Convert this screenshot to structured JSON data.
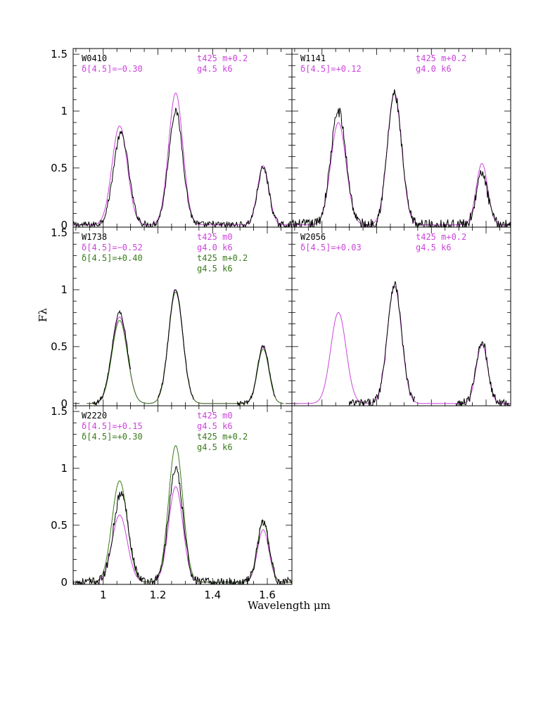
{
  "chart_data": {
    "type": "line",
    "xlabel": "Wavelength μm",
    "ylabel": "Fλ",
    "xlim": [
      0.89,
      1.69
    ],
    "ylim": [
      -0.02,
      1.55
    ],
    "x_ticks": [
      1,
      1.2,
      1.4,
      1.6
    ],
    "x_tick_labels": [
      "1",
      "1.2",
      "1.4",
      "1.6"
    ],
    "y_ticks": [
      0,
      0.5,
      1,
      1.5
    ],
    "y_tick_labels": [
      "0",
      "0.5",
      "1",
      "1.5"
    ],
    "colors": {
      "observed": "#000000",
      "model_a": "#cc44dd",
      "model_b": "#3a7a1a"
    },
    "panels": [
      {
        "id": "W0410",
        "label": "W0410",
        "annotations": [
          {
            "text": "δ[4.5]=−0.30",
            "color": "#cc44dd",
            "col": "left",
            "row": 1
          },
          {
            "text": "t425  m+0.2",
            "color": "#cc44dd",
            "col": "right",
            "row": 0
          },
          {
            "text": "g4.5  k6",
            "color": "#cc44dd",
            "col": "right",
            "row": 1
          }
        ],
        "observed": {
          "segments": [
            [
              0.89,
              1.69
            ]
          ],
          "peaks": [
            [
              1.065,
              0.8
            ],
            [
              1.265,
              1.0
            ],
            [
              1.585,
              0.5
            ]
          ],
          "noise": 0.03
        },
        "models": [
          {
            "color": "#cc44dd",
            "segments": [
              [
                0.89,
                1.69
              ]
            ],
            "peaks": [
              [
                1.06,
                0.87
              ],
              [
                1.265,
                1.16
              ],
              [
                1.585,
                0.52
              ]
            ]
          }
        ]
      },
      {
        "id": "W1141",
        "label": "W1141",
        "annotations": [
          {
            "text": "δ[4.5]=+0.12",
            "color": "#cc44dd",
            "col": "left",
            "row": 1
          },
          {
            "text": "t425  m+0.2",
            "color": "#cc44dd",
            "col": "right",
            "row": 0
          },
          {
            "text": "g4.0  k6",
            "color": "#cc44dd",
            "col": "right",
            "row": 1
          }
        ],
        "observed": {
          "segments": [
            [
              0.89,
              1.69
            ]
          ],
          "peaks": [
            [
              1.06,
              1.0
            ],
            [
              1.265,
              1.15
            ],
            [
              1.585,
              0.45
            ]
          ],
          "noise": 0.05
        },
        "models": [
          {
            "color": "#cc44dd",
            "segments": [
              [
                0.89,
                1.69
              ]
            ],
            "peaks": [
              [
                1.06,
                0.9
              ],
              [
                1.265,
                1.16
              ],
              [
                1.585,
                0.54
              ]
            ]
          }
        ]
      },
      {
        "id": "W1738",
        "label": "W1738",
        "annotations": [
          {
            "text": "δ[4.5]=−0.52",
            "color": "#cc44dd",
            "col": "left",
            "row": 1
          },
          {
            "text": "δ[4.5]=+0.40",
            "color": "#3a7a1a",
            "col": "left",
            "row": 2
          },
          {
            "text": "t425  m0",
            "color": "#cc44dd",
            "col": "right",
            "row": 0
          },
          {
            "text": "g4.0  k6",
            "color": "#cc44dd",
            "col": "right",
            "row": 1
          },
          {
            "text": "t425  m+0.2",
            "color": "#3a7a1a",
            "col": "right",
            "row": 2
          },
          {
            "text": "g4.5  k6",
            "color": "#3a7a1a",
            "col": "right",
            "row": 3
          }
        ],
        "observed": {
          "segments": [
            [
              0.96,
              1.1
            ],
            [
              1.2,
              1.33
            ],
            [
              1.49,
              1.63
            ]
          ],
          "peaks": [
            [
              1.06,
              0.8
            ],
            [
              1.265,
              1.0
            ],
            [
              1.585,
              0.5
            ]
          ],
          "noise": 0.02
        },
        "models": [
          {
            "color": "#cc44dd",
            "segments": [
              [
                0.94,
                1.66
              ]
            ],
            "peaks": [
              [
                1.06,
                0.76
              ],
              [
                1.265,
                1.0
              ],
              [
                1.585,
                0.5
              ]
            ]
          },
          {
            "color": "#3a7a1a",
            "segments": [
              [
                0.94,
                1.66
              ]
            ],
            "peaks": [
              [
                1.06,
                0.73
              ],
              [
                1.265,
                0.98
              ],
              [
                1.585,
                0.48
              ]
            ]
          }
        ]
      },
      {
        "id": "W2056",
        "label": "W2056",
        "annotations": [
          {
            "text": "δ[4.5]=+0.03",
            "color": "#cc44dd",
            "col": "left",
            "row": 1
          },
          {
            "text": "t425  m+0.2",
            "color": "#cc44dd",
            "col": "right",
            "row": 0
          },
          {
            "text": "g4.5  k6",
            "color": "#cc44dd",
            "col": "right",
            "row": 1
          }
        ],
        "observed": {
          "segments": [
            [
              1.1,
              1.34
            ],
            [
              1.49,
              1.69
            ]
          ],
          "peaks": [
            [
              1.265,
              1.05
            ],
            [
              1.585,
              0.55
            ]
          ],
          "noise": 0.04
        },
        "models": [
          {
            "color": "#cc44dd",
            "segments": [
              [
                0.9,
                1.69
              ]
            ],
            "peaks": [
              [
                1.06,
                0.8
              ],
              [
                1.265,
                1.03
              ],
              [
                1.585,
                0.52
              ]
            ]
          }
        ]
      },
      {
        "id": "W2220",
        "label": "W2220",
        "annotations": [
          {
            "text": "δ[4.5]=+0.15",
            "color": "#cc44dd",
            "col": "left",
            "row": 1
          },
          {
            "text": "δ[4.5]=+0.30",
            "color": "#3a7a1a",
            "col": "left",
            "row": 2
          },
          {
            "text": "t425  m0",
            "color": "#cc44dd",
            "col": "right",
            "row": 0
          },
          {
            "text": "g4.5  k6",
            "color": "#cc44dd",
            "col": "right",
            "row": 1
          },
          {
            "text": "t425  m+0.2",
            "color": "#3a7a1a",
            "col": "right",
            "row": 2
          },
          {
            "text": "g4.5  k6",
            "color": "#3a7a1a",
            "col": "right",
            "row": 3
          }
        ],
        "observed": {
          "segments": [
            [
              0.89,
              1.69
            ]
          ],
          "peaks": [
            [
              1.065,
              0.78
            ],
            [
              1.265,
              0.99
            ],
            [
              1.585,
              0.53
            ]
          ],
          "noise": 0.04
        },
        "models": [
          {
            "color": "#cc44dd",
            "segments": [
              [
                0.95,
                1.69
              ]
            ],
            "peaks": [
              [
                1.06,
                0.59
              ],
              [
                1.265,
                0.84
              ],
              [
                1.585,
                0.46
              ]
            ]
          },
          {
            "color": "#3a7a1a",
            "segments": [
              [
                0.95,
                1.69
              ]
            ],
            "peaks": [
              [
                1.06,
                0.89
              ],
              [
                1.265,
                1.2
              ],
              [
                1.585,
                0.54
              ]
            ]
          }
        ]
      }
    ]
  }
}
